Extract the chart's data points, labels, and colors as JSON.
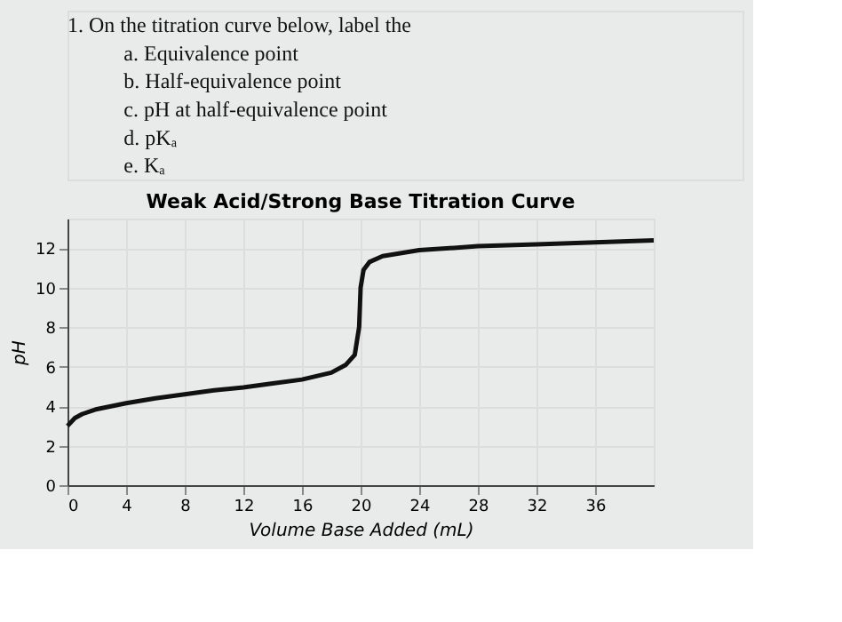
{
  "chart_data": {
    "type": "line",
    "title": "Weak Acid/Strong Base Titration Curve",
    "xlabel": "Volume Base Added (mL)",
    "ylabel": "pH",
    "annotations": [
      "1. On the titration curve below, label the",
      "a. Equivalence point",
      "b. Half-equivalence point",
      "c. pH at half-equivalence point",
      "d. pKₐ",
      "e. Kₐ"
    ],
    "x": [
      0,
      0.5,
      1,
      2,
      4,
      6,
      8,
      10,
      12,
      14,
      16,
      18,
      19,
      19.6,
      19.9,
      20,
      20.2,
      20.6,
      21.5,
      24,
      28,
      32,
      36,
      40
    ],
    "series": [
      {
        "color": "#111111",
        "values": [
          3.0,
          3.4,
          3.6,
          3.85,
          4.15,
          4.4,
          4.6,
          4.8,
          4.95,
          5.15,
          5.35,
          5.7,
          6.1,
          6.6,
          8.0,
          10.0,
          10.9,
          11.3,
          11.6,
          11.9,
          12.1,
          12.2,
          12.3,
          12.4
        ]
      }
    ],
    "xlim": [
      0,
      40
    ],
    "xticks": [
      0,
      4,
      8,
      12,
      16,
      20,
      24,
      28,
      32,
      36
    ],
    "ylim": [
      0,
      13.5
    ],
    "yticks": [
      0,
      2,
      4,
      6,
      8,
      10,
      12
    ],
    "grid": true,
    "marker": "none",
    "line_style": "solid",
    "legend": false
  }
}
